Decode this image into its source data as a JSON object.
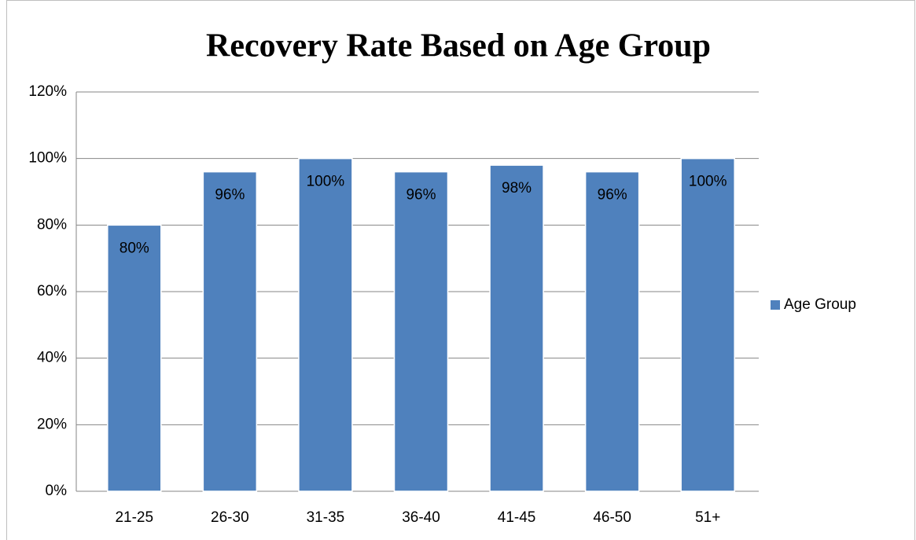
{
  "chart_data": {
    "type": "bar",
    "title": "Recovery Rate Based on Age Group",
    "categories": [
      "21-25",
      "26-30",
      "31-35",
      "36-40",
      "41-45",
      "46-50",
      "51+"
    ],
    "series": [
      {
        "name": "Age Group",
        "color": "#4f81bd",
        "values": [
          80,
          96,
          100,
          96,
          98,
          96,
          100
        ],
        "value_labels": [
          "80%",
          "96%",
          "100%",
          "96%",
          "98%",
          "96%",
          "100%"
        ]
      }
    ],
    "ylim": [
      0,
      120
    ],
    "yticks": [
      {
        "value": 0,
        "label": "0%"
      },
      {
        "value": 20,
        "label": "20%"
      },
      {
        "value": 40,
        "label": "40%"
      },
      {
        "value": 60,
        "label": "60%"
      },
      {
        "value": 80,
        "label": "80%"
      },
      {
        "value": 100,
        "label": "100%"
      },
      {
        "value": 120,
        "label": "120%"
      }
    ],
    "grid": true,
    "legend": "right"
  }
}
